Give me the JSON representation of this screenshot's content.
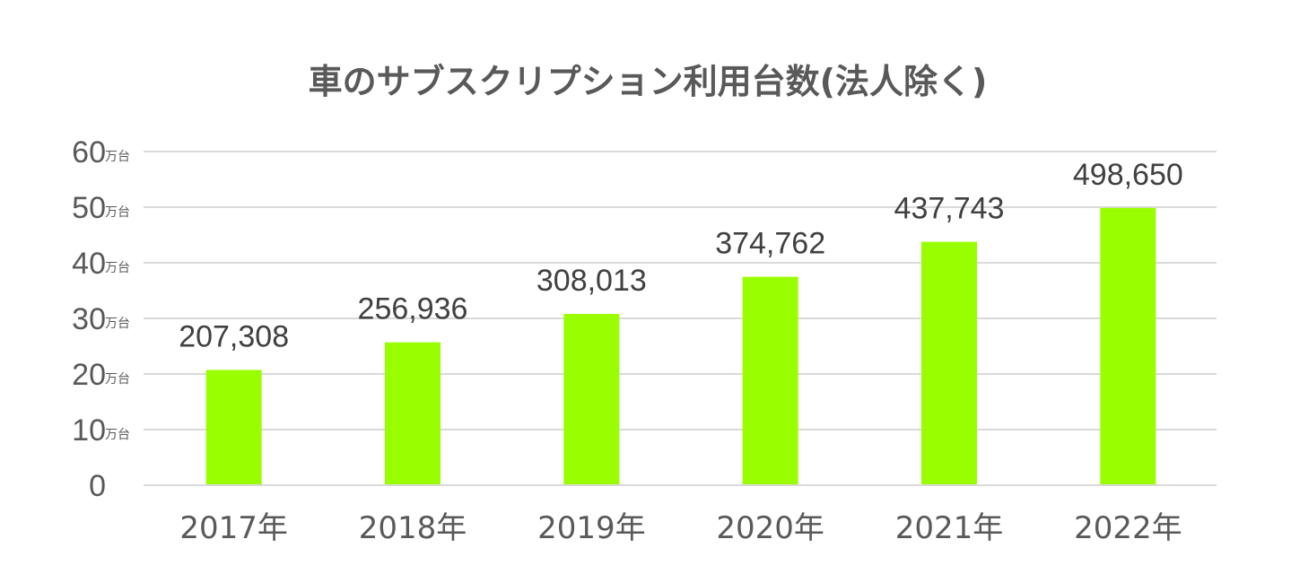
{
  "chart_data": {
    "type": "bar",
    "title": "車のサブスクリプション利用台数(法人除く)",
    "xlabel": "",
    "ylabel": "",
    "categories": [
      "2017年",
      "2018年",
      "2019年",
      "2020年",
      "2021年",
      "2022年"
    ],
    "values": [
      207308,
      256936,
      308013,
      374762,
      437743,
      498650
    ],
    "data_labels": [
      "207,308",
      "256,936",
      "308,013",
      "374,762",
      "437,743",
      "498,650"
    ],
    "ylim": [
      0,
      600000
    ],
    "yticks": [
      {
        "value": 0,
        "label": "0",
        "unit": ""
      },
      {
        "value": 100000,
        "label": "10",
        "unit": "万台"
      },
      {
        "value": 200000,
        "label": "20",
        "unit": "万台"
      },
      {
        "value": 300000,
        "label": "30",
        "unit": "万台"
      },
      {
        "value": 400000,
        "label": "40",
        "unit": "万台"
      },
      {
        "value": 500000,
        "label": "50",
        "unit": "万台"
      },
      {
        "value": 600000,
        "label": "60",
        "unit": "万台"
      }
    ],
    "grid": true,
    "bar_color": "#99ff00",
    "legend": "none"
  }
}
